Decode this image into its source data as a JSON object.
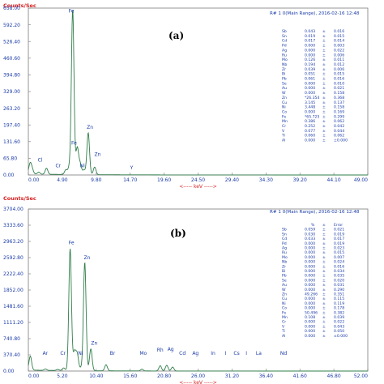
{
  "chart_data": [
    {
      "type": "line",
      "panel_label": "(a)",
      "ylabel": "Counts/Sec",
      "xlabel": "keV",
      "header": "R# 1 0(Main Range), 2016-02-16 12:48",
      "ylim": [
        0,
        658
      ],
      "xlim": [
        0,
        49
      ],
      "y_ticks": [
        "658.00",
        "592.20",
        "526.40",
        "460.60",
        "394.80",
        "329.00",
        "263.20",
        "197.40",
        "131.60",
        "65.80",
        "0.00"
      ],
      "x_ticks": [
        "0.00",
        "4.90",
        "9.80",
        "14.70",
        "19.60",
        "24.50",
        "29.40",
        "34.30",
        "39.20",
        "44.10",
        "49.00"
      ],
      "peaks": [
        {
          "x": 0.25,
          "y": 40
        },
        {
          "x": 0.55,
          "y": 18
        },
        {
          "x": 1.5,
          "y": 8
        },
        {
          "x": 2.62,
          "y": 24
        },
        {
          "x": 5.41,
          "y": 18
        },
        {
          "x": 5.9,
          "y": 28
        },
        {
          "x": 6.4,
          "y": 650
        },
        {
          "x": 7.06,
          "y": 105
        },
        {
          "x": 7.48,
          "y": 42
        },
        {
          "x": 8.03,
          "y": 18
        },
        {
          "x": 8.64,
          "y": 165
        },
        {
          "x": 9.57,
          "y": 30
        }
      ],
      "peak_labels": [
        {
          "text": "Fe",
          "x": 6.2,
          "y": 640
        },
        {
          "text": "Zn",
          "x": 8.9,
          "y": 182
        },
        {
          "text": "Fe",
          "x": 6.6,
          "y": 120
        },
        {
          "text": "Zn",
          "x": 10.0,
          "y": 75
        },
        {
          "text": "Cl",
          "x": 1.7,
          "y": 52
        },
        {
          "text": "Cr",
          "x": 4.3,
          "y": 30
        },
        {
          "text": "Ni",
          "x": 7.8,
          "y": 30
        },
        {
          "text": "Y",
          "x": 14.9,
          "y": 22
        }
      ],
      "table": {
        "columns": [],
        "rows": [
          [
            "Sb",
            "0.043",
            "±",
            "0.016"
          ],
          [
            "Sn",
            "0.019",
            "±",
            "0.015"
          ],
          [
            "Cd",
            "0.017",
            "±",
            "0.014"
          ],
          [
            "Pd",
            "0.000",
            "±",
            "0.003"
          ],
          [
            "Ag",
            "0.000",
            "±",
            "0.022"
          ],
          [
            "Ru",
            "0.000",
            "±",
            "0.006"
          ],
          [
            "Mo",
            "0.126",
            "±",
            "0.011"
          ],
          [
            "Nb",
            "0.194",
            "±",
            "0.012"
          ],
          [
            "Zr",
            "0.039",
            "±",
            "0.006"
          ],
          [
            "Bi",
            "0.051",
            "±",
            "0.015"
          ],
          [
            "Pb",
            "0.061",
            "±",
            "0.016"
          ],
          [
            "Se",
            "0.000",
            "±",
            "0.010"
          ],
          [
            "Au",
            "0.000",
            "±",
            "0.021"
          ],
          [
            "W",
            "0.000",
            "±",
            "0.158"
          ],
          [
            "Zn",
            "*26.354",
            "±",
            "0.368"
          ],
          [
            "Cu",
            "3.145",
            "±",
            "0.137"
          ],
          [
            "Ni",
            "3.448",
            "±",
            "0.158"
          ],
          [
            "Co",
            "0.000",
            "±",
            "0.169"
          ],
          [
            "Fe",
            "*65.725",
            "±",
            "0.299"
          ],
          [
            "Mn",
            "0.386",
            "±",
            "0.062"
          ],
          [
            "Cr",
            "0.252",
            "±",
            "0.042"
          ],
          [
            "V",
            "0.077",
            "±",
            "0.044"
          ],
          [
            "Ti",
            "0.060",
            "±",
            "0.062"
          ],
          [
            "Al",
            "0.000",
            "±",
            "±0.000"
          ]
        ]
      }
    },
    {
      "type": "line",
      "panel_label": "(b)",
      "ylabel": "Counts/Sec",
      "xlabel": "keV",
      "header": "R# 1 0(Main Range), 2016-02-16 12:48",
      "ylim": [
        0,
        3704
      ],
      "xlim": [
        0,
        52
      ],
      "y_ticks": [
        "3704.00",
        "3333.60",
        "2963.20",
        "2592.80",
        "2222.40",
        "1852.00",
        "1481.60",
        "1111.20",
        "740.80",
        "370.40",
        "0.00"
      ],
      "x_ticks": [
        "0.00",
        "5.20",
        "10.40",
        "15.60",
        "20.80",
        "26.00",
        "31.20",
        "36.40",
        "41.60",
        "46.80",
        "52.00"
      ],
      "peaks": [
        {
          "x": 0.3,
          "y": 320
        },
        {
          "x": 2.62,
          "y": 30
        },
        {
          "x": 4.5,
          "y": 25
        },
        {
          "x": 5.41,
          "y": 60
        },
        {
          "x": 6.4,
          "y": 2790
        },
        {
          "x": 7.06,
          "y": 420
        },
        {
          "x": 7.48,
          "y": 380
        },
        {
          "x": 8.05,
          "y": 60
        },
        {
          "x": 8.64,
          "y": 2480
        },
        {
          "x": 9.57,
          "y": 500
        },
        {
          "x": 11.9,
          "y": 140
        },
        {
          "x": 17.4,
          "y": 40
        },
        {
          "x": 20.2,
          "y": 120
        },
        {
          "x": 21.2,
          "y": 130
        },
        {
          "x": 22.1,
          "y": 90
        }
      ],
      "peak_labels": [
        {
          "text": "Fe",
          "x": 6.6,
          "y": 2900
        },
        {
          "text": "Zn",
          "x": 9.0,
          "y": 2560
        },
        {
          "text": "Zn",
          "x": 10.1,
          "y": 600
        },
        {
          "text": "Ar",
          "x": 2.6,
          "y": 370
        },
        {
          "text": "Cr",
          "x": 5.3,
          "y": 370
        },
        {
          "text": "Ni",
          "x": 8.0,
          "y": 370
        },
        {
          "text": "Br",
          "x": 12.9,
          "y": 370
        },
        {
          "text": "Mo",
          "x": 17.6,
          "y": 370
        },
        {
          "text": "Rh",
          "x": 20.2,
          "y": 440
        },
        {
          "text": "Ag",
          "x": 21.8,
          "y": 460
        },
        {
          "text": "Cd",
          "x": 23.6,
          "y": 370
        },
        {
          "text": "Ag",
          "x": 25.6,
          "y": 370
        },
        {
          "text": "In",
          "x": 28.3,
          "y": 370
        },
        {
          "text": "I",
          "x": 30.2,
          "y": 370
        },
        {
          "text": "Cs",
          "x": 31.9,
          "y": 370
        },
        {
          "text": "I",
          "x": 33.4,
          "y": 370
        },
        {
          "text": "La",
          "x": 35.3,
          "y": 370
        },
        {
          "text": "Nd",
          "x": 39.1,
          "y": 370
        }
      ],
      "table": {
        "columns": [
          "",
          "%",
          "±",
          "Error"
        ],
        "rows": [
          [
            "Sb",
            "0.059",
            "±",
            "0.021"
          ],
          [
            "Sn",
            "0.030",
            "±",
            "0.019"
          ],
          [
            "Cd",
            "0.033",
            "±",
            "0.017"
          ],
          [
            "Pd",
            "0.000",
            "±",
            "0.019"
          ],
          [
            "Ag",
            "0.000",
            "±",
            "0.023"
          ],
          [
            "Ru",
            "0.000",
            "±",
            "0.015"
          ],
          [
            "Mo",
            "0.000",
            "±",
            "0.007"
          ],
          [
            "Nb",
            "0.000",
            "±",
            "0.024"
          ],
          [
            "Zr",
            "0.000",
            "±",
            "0.016"
          ],
          [
            "Bi",
            "0.000",
            "±",
            "0.034"
          ],
          [
            "Pb",
            "0.000",
            "±",
            "0.035"
          ],
          [
            "Se",
            "0.000",
            "±",
            "0.020"
          ],
          [
            "Au",
            "0.000",
            "±",
            "0.031"
          ],
          [
            "W",
            "0.000",
            "±",
            "0.290"
          ],
          [
            "Zn",
            "49.266",
            "±",
            "0.351"
          ],
          [
            "Cu",
            "0.000",
            "±",
            "0.115"
          ],
          [
            "Ni",
            "0.000",
            "±",
            "0.119"
          ],
          [
            "Co",
            "0.000",
            "±",
            "0.178"
          ],
          [
            "Fe",
            "50.496",
            "±",
            "0.382"
          ],
          [
            "Mn",
            "0.108",
            "±",
            "0.039"
          ],
          [
            "Cr",
            "0.000",
            "±",
            "0.022"
          ],
          [
            "V",
            "0.000",
            "±",
            "0.043"
          ],
          [
            "Ti",
            "0.000",
            "±",
            "0.050"
          ],
          [
            "Al",
            "0.000",
            "±",
            "±0.000"
          ]
        ]
      }
    }
  ]
}
